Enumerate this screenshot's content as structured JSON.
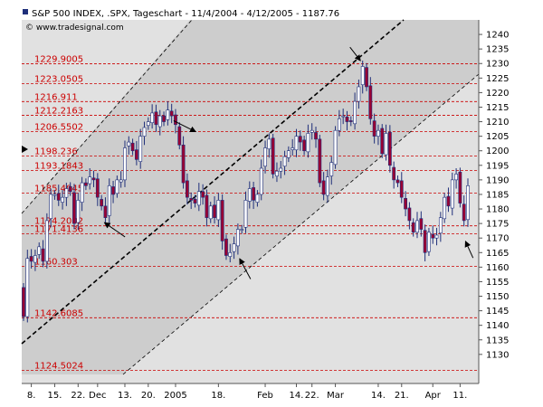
{
  "header": {
    "title": "S&P 500 INDEX, .SPX, Tageschart - 11/4/2004 - 4/12/2005 - 1187.76",
    "source": "© www.tradesignal.com"
  },
  "colors": {
    "background": "#ffffff",
    "plot_bg": "#e1e1e1",
    "channel_fill": "#cdcdcd",
    "up_candle": "#ffffff",
    "down_candle": "#990033",
    "candle_outline": "#1f2f7a",
    "level_line": "#cc0000",
    "trend_line": "#000000"
  },
  "chart_data": {
    "type": "candlestick",
    "ylim": [
      1120,
      1245
    ],
    "y_ticks": [
      1130,
      1135,
      1140,
      1145,
      1150,
      1155,
      1160,
      1165,
      1170,
      1175,
      1180,
      1185,
      1190,
      1195,
      1200,
      1205,
      1210,
      1215,
      1220,
      1225,
      1230,
      1235,
      1240
    ],
    "x_ticks": [
      "8.",
      "15.",
      "22.",
      "Dec",
      "13.",
      "20.",
      "2005",
      "18.",
      "Feb",
      "14.",
      "22.",
      "Mar",
      "14.",
      "21.",
      "Apr",
      "11."
    ],
    "levels": [
      {
        "label": "1229.9005",
        "value": 1229.9005
      },
      {
        "label": "1223.0505",
        "value": 1223.0505
      },
      {
        "label": "1216.911",
        "value": 1216.911
      },
      {
        "label": "1212.2163",
        "value": 1212.2163
      },
      {
        "label": "1206.5502",
        "value": 1206.5502
      },
      {
        "label": "1198.236",
        "value": 1198.236
      },
      {
        "label": "1193.1843",
        "value": 1193.1843
      },
      {
        "label": "1185.4045",
        "value": 1185.4045
      },
      {
        "label": "1174.2002",
        "value": 1174.2002
      },
      {
        "label": "1171.4136",
        "value": 1171.4136
      },
      {
        "label": "1160.303",
        "value": 1160.303
      },
      {
        "label": "1142.6085",
        "value": 1142.6085
      },
      {
        "label": "1124.5024",
        "value": 1124.5024
      }
    ],
    "closes": [
      1143,
      1163,
      1162,
      1164,
      1167,
      1162,
      1176,
      1185,
      1185,
      1183,
      1184,
      1187,
      1186,
      1175,
      1183,
      1189,
      1188,
      1191,
      1190,
      1184,
      1181,
      1177,
      1188,
      1185,
      1190,
      1190,
      1201,
      1203,
      1200,
      1197,
      1205,
      1208,
      1210,
      1213,
      1209,
      1212,
      1210,
      1214,
      1212,
      1209,
      1202,
      1189,
      1184,
      1183,
      1182,
      1186,
      1184,
      1177,
      1181,
      1177,
      1183,
      1169,
      1164,
      1165,
      1168,
      1173,
      1173,
      1183,
      1187,
      1183,
      1185,
      1194,
      1201,
      1204,
      1192,
      1193,
      1194,
      1198,
      1200,
      1201,
      1205,
      1203,
      1200,
      1206,
      1207,
      1204,
      1189,
      1185,
      1191,
      1196,
      1207,
      1211,
      1212,
      1210,
      1210,
      1217,
      1222,
      1229,
      1222,
      1211,
      1205,
      1207,
      1199,
      1206,
      1195,
      1190,
      1189,
      1184,
      1180,
      1176,
      1172,
      1176,
      1173,
      1165,
      1172,
      1170,
      1171,
      1177,
      1184,
      1181,
      1190,
      1192,
      1182,
      1176,
      1188
    ],
    "annotation_targets": [
      {
        "bar": 20,
        "value": 1176
      },
      {
        "bar": 45,
        "value": 1206
      },
      {
        "bar": 55,
        "value": 1164
      },
      {
        "bar": 87,
        "value": 1230
      },
      {
        "bar": 113,
        "value": 1170
      }
    ],
    "legend": "none",
    "grid": false
  }
}
